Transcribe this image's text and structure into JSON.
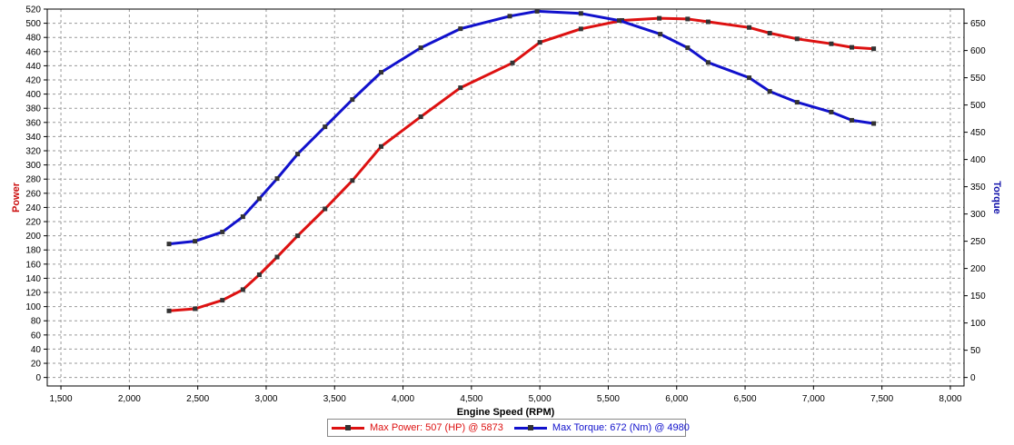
{
  "chart_data": {
    "type": "line",
    "xlabel": "Engine Speed (RPM)",
    "ylabel_left": "Power",
    "ylabel_right": "Torque",
    "xlim": [
      1400,
      8100
    ],
    "ylim_left": [
      -12,
      520
    ],
    "ylim_right": [
      -15.6,
      676
    ],
    "x_ticks": [
      1500,
      2000,
      2500,
      3000,
      3500,
      4000,
      4500,
      5000,
      5500,
      6000,
      6500,
      7000,
      7500,
      8000
    ],
    "x_tick_labels": [
      "1,500",
      "2,000",
      "2,500",
      "3,000",
      "3,500",
      "4,000",
      "4,500",
      "5,000",
      "5,500",
      "6,000",
      "6,500",
      "7,000",
      "7,500",
      "8,000"
    ],
    "y_left_ticks": [
      0,
      20,
      40,
      60,
      80,
      100,
      120,
      140,
      160,
      180,
      200,
      220,
      240,
      260,
      280,
      300,
      320,
      340,
      360,
      380,
      400,
      420,
      440,
      460,
      480,
      500,
      520
    ],
    "y_right_ticks": [
      0,
      50,
      100,
      150,
      200,
      250,
      300,
      350,
      400,
      450,
      500,
      550,
      600,
      650
    ],
    "grid": true,
    "legend_position": "bottom-center",
    "series": [
      {
        "name": "Max Power: 507 (HP) @ 5873",
        "axis": "left",
        "color": "#dd1111",
        "x": [
          2290,
          2480,
          2680,
          2830,
          2950,
          3080,
          3230,
          3430,
          3630,
          3840,
          4130,
          4420,
          4800,
          5000,
          5300,
          5600,
          5873,
          6080,
          6230,
          6530,
          6680,
          6880,
          7130,
          7280,
          7440
        ],
        "y": [
          94,
          97,
          109,
          124,
          145,
          170,
          200,
          238,
          278,
          326,
          368,
          409,
          444,
          473,
          492,
          504,
          507,
          506,
          502,
          494,
          486,
          478,
          471,
          466,
          464
        ]
      },
      {
        "name": "Max Torque: 672 (Nm) @ 4980",
        "axis": "right",
        "color": "#1111cc",
        "x": [
          2290,
          2480,
          2680,
          2830,
          2950,
          3080,
          3230,
          3430,
          3630,
          3840,
          4130,
          4420,
          4780,
          4980,
          5300,
          5580,
          5880,
          6080,
          6230,
          6530,
          6680,
          6880,
          7130,
          7280,
          7440
        ],
        "y": [
          245,
          250,
          267,
          295,
          328,
          365,
          410,
          460,
          510,
          560,
          605,
          640,
          663,
          672,
          668,
          655,
          630,
          605,
          578,
          550,
          525,
          505,
          487,
          472,
          466
        ]
      }
    ]
  }
}
